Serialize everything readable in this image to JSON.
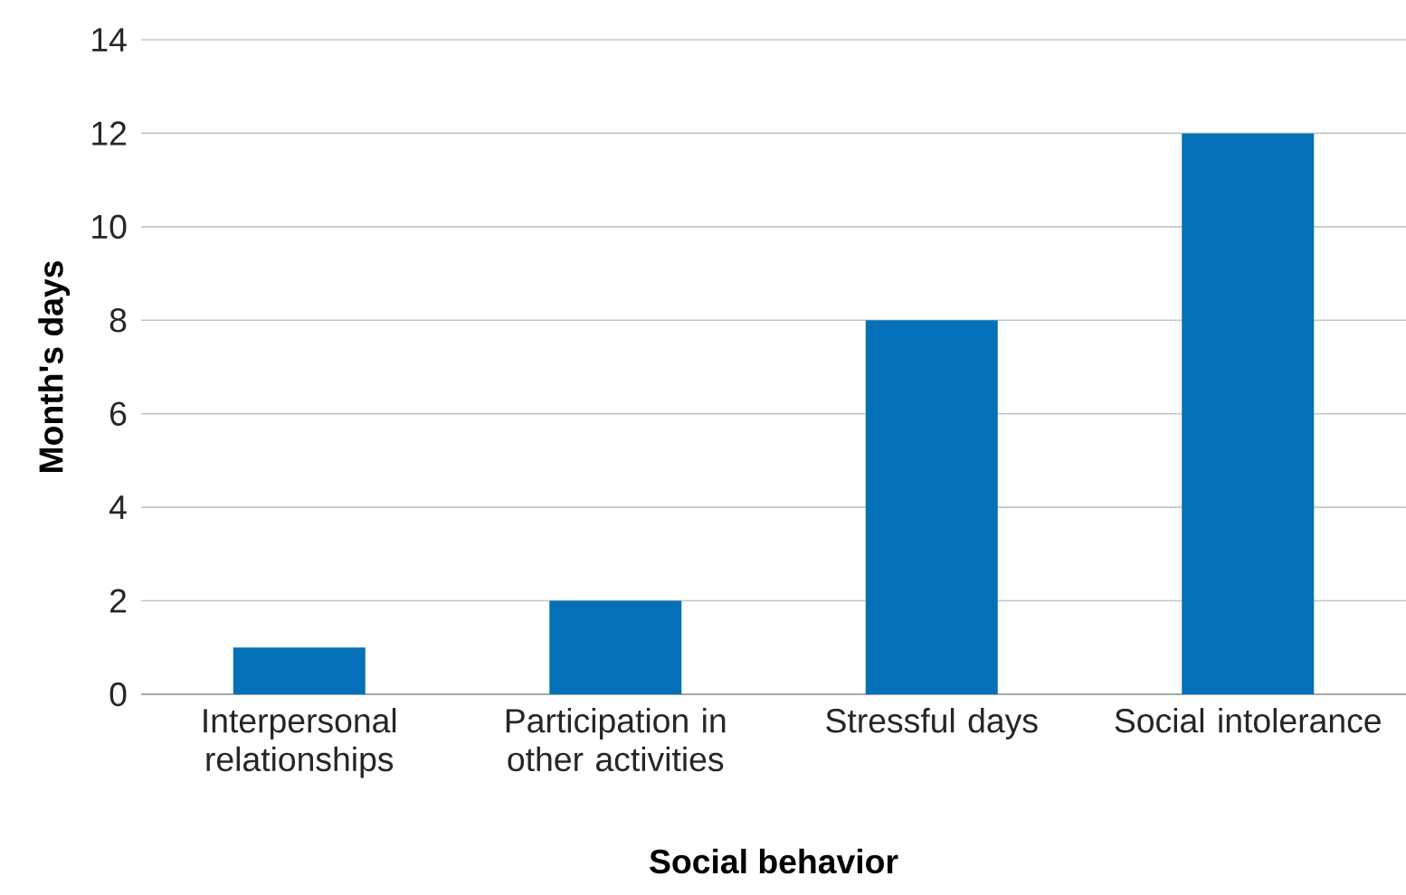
{
  "chart_data": {
    "type": "bar",
    "xlabel": "Social behavior",
    "ylabel": "Month's days",
    "categories": [
      "Interpersonal relationships",
      "Participation in other activities",
      "Stressful days",
      "Social intolerance"
    ],
    "values": [
      1,
      2,
      8,
      12
    ],
    "color": "#0470b8",
    "ylim": [
      0,
      14
    ],
    "yticks": [
      0,
      2,
      4,
      6,
      8,
      10,
      12,
      14
    ],
    "grid": "y"
  }
}
